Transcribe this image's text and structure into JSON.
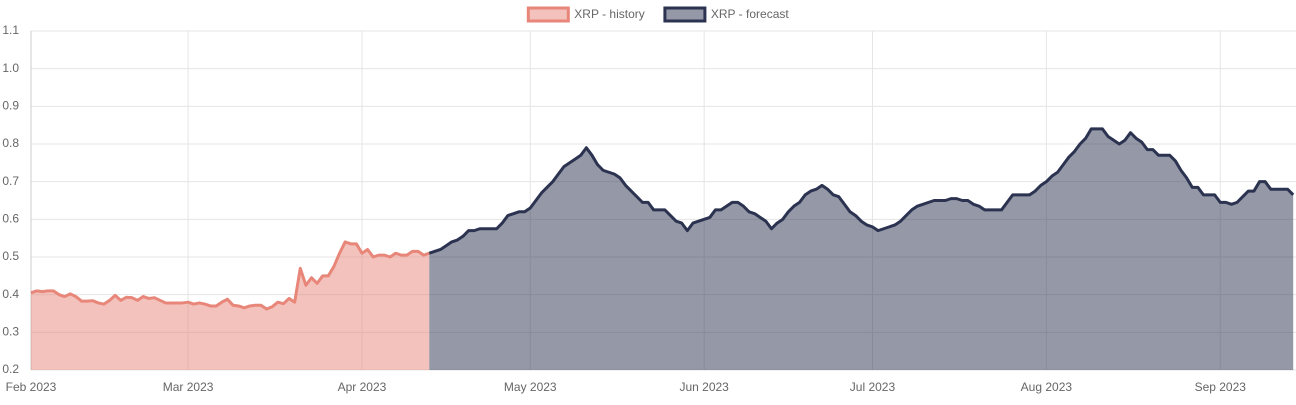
{
  "chart_data": {
    "type": "area",
    "categories": [
      "Feb 2023",
      null,
      null,
      null,
      null,
      null,
      null,
      null,
      null,
      null,
      null,
      null,
      null,
      null,
      null,
      null,
      null,
      null,
      null,
      null,
      null,
      null,
      null,
      null,
      null,
      null,
      null,
      null,
      "Mar 2023",
      null,
      null,
      null,
      null,
      null,
      null,
      null,
      null,
      null,
      null,
      null,
      null,
      null,
      null,
      null,
      null,
      null,
      null,
      null,
      null,
      null,
      null,
      null,
      null,
      null,
      null,
      null,
      null,
      null,
      null,
      "Apr 2023",
      null,
      null,
      null,
      null,
      null,
      null,
      null,
      null,
      null,
      null,
      null,
      null,
      null,
      null,
      null,
      null,
      null,
      null,
      null,
      null,
      null,
      null,
      null,
      null,
      null,
      null,
      null,
      null,
      null,
      "May 2023",
      null,
      null,
      null,
      null,
      null,
      null,
      null,
      null,
      null,
      null,
      null,
      null,
      null,
      null,
      null,
      null,
      null,
      null,
      null,
      null,
      null,
      null,
      null,
      null,
      null,
      null,
      null,
      null,
      null,
      null,
      "Jun 2023",
      null,
      null,
      null,
      null,
      null,
      null,
      null,
      null,
      null,
      null,
      null,
      null,
      null,
      null,
      null,
      null,
      null,
      null,
      null,
      null,
      null,
      null,
      null,
      null,
      null,
      null,
      null,
      null,
      null,
      "Jul 2023",
      null,
      null,
      null,
      null,
      null,
      null,
      null,
      null,
      null,
      null,
      null,
      null,
      null,
      null,
      null,
      null,
      null,
      null,
      null,
      null,
      null,
      null,
      null,
      null,
      null,
      null,
      null,
      null,
      null,
      null,
      "Aug 2023",
      null,
      null,
      null,
      null,
      null,
      null,
      null,
      null,
      null,
      null,
      null,
      null,
      null,
      null,
      null,
      null,
      null,
      null,
      null,
      null,
      null,
      null,
      null,
      null,
      null,
      null,
      null,
      null,
      null,
      null,
      "Sep 2023",
      null,
      null,
      null,
      null,
      null,
      null,
      null,
      null,
      null,
      null,
      null,
      null,
      null
    ],
    "series": [
      {
        "name": "XRP - history",
        "color": "#e8867a",
        "values": [
          0.405,
          0.41,
          0.408,
          0.41,
          0.41,
          0.4,
          0.395,
          0.402,
          0.395,
          0.383,
          0.383,
          0.384,
          0.378,
          0.375,
          0.385,
          0.398,
          0.385,
          0.393,
          0.392,
          0.385,
          0.395,
          0.39,
          0.392,
          0.385,
          0.378,
          0.378,
          0.378,
          0.378,
          0.38,
          0.375,
          0.378,
          0.375,
          0.37,
          0.37,
          0.38,
          0.388,
          0.372,
          0.37,
          0.365,
          0.37,
          0.372,
          0.372,
          0.362,
          0.368,
          0.38,
          0.376,
          0.39,
          0.38,
          0.47,
          0.425,
          0.445,
          0.43,
          0.45,
          0.45,
          0.475,
          0.51,
          0.54,
          0.535,
          0.535,
          0.51,
          0.52,
          0.5,
          0.505,
          0.505,
          0.5,
          0.51,
          0.505,
          0.505,
          0.515,
          0.515,
          0.505,
          0.51,
          null,
          null,
          null,
          null,
          null,
          null,
          null,
          null,
          null,
          null,
          null,
          null,
          null,
          null,
          null,
          null,
          null,
          null,
          null,
          null,
          null,
          null,
          null,
          null,
          null,
          null,
          null,
          null,
          null,
          null,
          null,
          null,
          null,
          null,
          null,
          null,
          null,
          null,
          null,
          null,
          null,
          null,
          null,
          null,
          null,
          null,
          null,
          null,
          null,
          null,
          null,
          null,
          null,
          null,
          null,
          null,
          null,
          null,
          null,
          null,
          null,
          null,
          null,
          null,
          null,
          null,
          null,
          null,
          null,
          null,
          null,
          null,
          null,
          null,
          null,
          null,
          null,
          null,
          null,
          null,
          null,
          null,
          null,
          null,
          null,
          null,
          null,
          null,
          null,
          null,
          null,
          null,
          null,
          null,
          null,
          null,
          null,
          null,
          null,
          null,
          null,
          null,
          null,
          null,
          null,
          null,
          null,
          null,
          null,
          null,
          null,
          null,
          null,
          null,
          null,
          null,
          null,
          null,
          null,
          null,
          null,
          null,
          null,
          null,
          null,
          null,
          null,
          null,
          null,
          null,
          null,
          null,
          null,
          null,
          null,
          null,
          null,
          null,
          null,
          null,
          null,
          null,
          null,
          null,
          null,
          null,
          null,
          null,
          null,
          null,
          null,
          null,
          null,
          null
        ]
      },
      {
        "name": "XRP - forecast",
        "color": "#2b3350",
        "values": [
          null,
          null,
          null,
          null,
          null,
          null,
          null,
          null,
          null,
          null,
          null,
          null,
          null,
          null,
          null,
          null,
          null,
          null,
          null,
          null,
          null,
          null,
          null,
          null,
          null,
          null,
          null,
          null,
          null,
          null,
          null,
          null,
          null,
          null,
          null,
          null,
          null,
          null,
          null,
          null,
          null,
          null,
          null,
          null,
          null,
          null,
          null,
          null,
          null,
          null,
          null,
          null,
          null,
          null,
          null,
          null,
          null,
          null,
          null,
          null,
          null,
          null,
          null,
          null,
          null,
          null,
          null,
          null,
          null,
          null,
          null,
          0.51,
          0.515,
          0.52,
          0.53,
          0.54,
          0.545,
          0.555,
          0.57,
          0.57,
          0.575,
          0.575,
          0.575,
          0.575,
          0.59,
          0.61,
          0.615,
          0.62,
          0.62,
          0.63,
          0.65,
          0.67,
          0.685,
          0.7,
          0.72,
          0.74,
          0.75,
          0.76,
          0.77,
          0.79,
          0.77,
          0.745,
          0.73,
          0.725,
          0.72,
          0.71,
          0.69,
          0.675,
          0.66,
          0.645,
          0.645,
          0.625,
          0.625,
          0.625,
          0.61,
          0.595,
          0.59,
          0.57,
          0.59,
          0.595,
          0.6,
          0.605,
          0.625,
          0.625,
          0.635,
          0.645,
          0.645,
          0.635,
          0.62,
          0.615,
          0.605,
          0.595,
          0.575,
          0.59,
          0.6,
          0.62,
          0.635,
          0.645,
          0.665,
          0.675,
          0.68,
          0.69,
          0.68,
          0.665,
          0.66,
          0.64,
          0.62,
          0.61,
          0.595,
          0.585,
          0.58,
          0.57,
          0.575,
          0.58,
          0.585,
          0.595,
          0.61,
          0.625,
          0.635,
          0.64,
          0.645,
          0.65,
          0.65,
          0.65,
          0.655,
          0.655,
          0.65,
          0.65,
          0.64,
          0.635,
          0.625,
          0.625,
          0.625,
          0.625,
          0.645,
          0.665,
          0.665,
          0.665,
          0.665,
          0.675,
          0.69,
          0.7,
          0.715,
          0.725,
          0.745,
          0.765,
          0.78,
          0.8,
          0.815,
          0.84,
          0.84,
          0.84,
          0.82,
          0.81,
          0.8,
          0.81,
          0.83,
          0.815,
          0.805,
          0.785,
          0.785,
          0.77,
          0.77,
          0.77,
          0.755,
          0.73,
          0.71,
          0.685,
          0.685,
          0.665,
          0.665,
          0.665,
          0.645,
          0.645,
          0.64,
          0.645,
          0.66,
          0.675,
          0.675,
          0.7,
          0.7,
          0.68,
          0.68,
          0.68,
          0.68,
          0.665
        ]
      }
    ],
    "ylim": [
      0.2,
      1.1
    ],
    "yticks": [
      0.2,
      0.3,
      0.4,
      0.5,
      0.6,
      0.7,
      0.8,
      0.9,
      {
        "value": 1,
        "label": "1.0"
      },
      1.1
    ],
    "grid": true,
    "legend": "top"
  }
}
